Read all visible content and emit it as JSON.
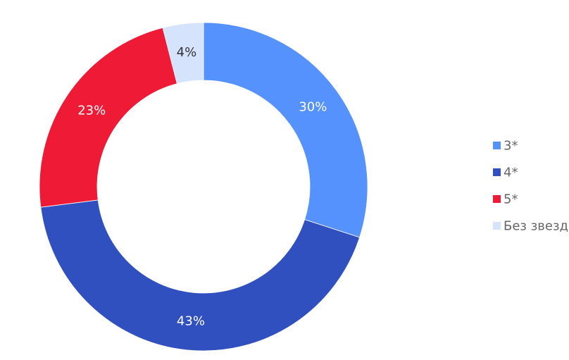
{
  "chart_data": {
    "type": "pie",
    "donut": true,
    "start_angle_deg": 0,
    "direction": "clockwise",
    "legend_position": "right",
    "slices": [
      {
        "label": "3*",
        "value": 30,
        "display": "30%",
        "color": "#5592fd",
        "label_color": "#ffffff"
      },
      {
        "label": "4*",
        "value": 43,
        "display": "43%",
        "color": "#3150bf",
        "label_color": "#ffffff"
      },
      {
        "label": "5*",
        "value": 23,
        "display": "23%",
        "color": "#ef1a36",
        "label_color": "#ffffff"
      },
      {
        "label": "Без звезд",
        "value": 4,
        "display": "4%",
        "color": "#d6e3fd",
        "label_color": "#333333"
      }
    ]
  }
}
